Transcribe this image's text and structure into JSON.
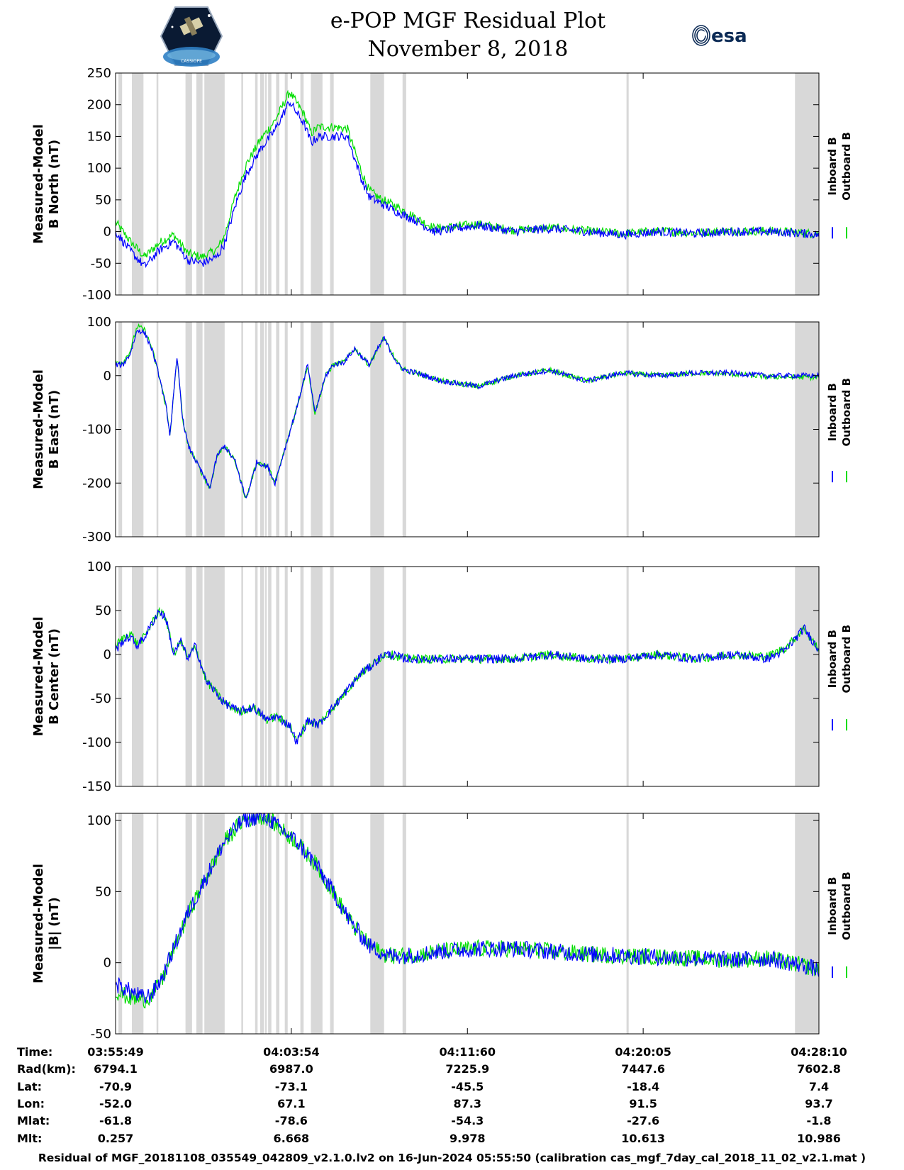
{
  "header": {
    "title": "e-POP MGF Residual Plot",
    "date": "November 8, 2018",
    "logo_left_text": "CASSIOPE",
    "logo_right_text": "esa"
  },
  "colors": {
    "inboard": "#0000ff",
    "outboard": "#00dd00",
    "gap": "#d8d8d8"
  },
  "legend": {
    "inboard": "Inboard B",
    "outboard": "Outboard B"
  },
  "chart_data": [
    {
      "type": "line",
      "ylabel_line1": "Measured-Model",
      "ylabel_line2": "B North (nT)",
      "ylim": [
        -100,
        250
      ],
      "yticks": [
        -100,
        -50,
        0,
        50,
        100,
        150,
        200,
        250
      ],
      "xlim": [
        0,
        1941
      ],
      "series": [
        {
          "name": "Inboard B",
          "x": [
            0,
            40,
            80,
            120,
            160,
            200,
            240,
            280,
            300,
            330,
            360,
            400,
            440,
            480,
            520,
            540,
            560,
            600,
            640,
            680,
            700,
            730,
            780,
            820,
            880,
            940,
            1000,
            1100,
            1200,
            1300,
            1400,
            1500,
            1600,
            1700,
            1800,
            1900,
            1941
          ],
          "y": [
            0,
            -30,
            -55,
            -30,
            -15,
            -45,
            -50,
            -40,
            -20,
            40,
            90,
            130,
            160,
            205,
            170,
            140,
            150,
            150,
            150,
            80,
            55,
            45,
            30,
            20,
            0,
            5,
            10,
            0,
            5,
            0,
            -5,
            0,
            -3,
            0,
            0,
            -3,
            -5
          ]
        },
        {
          "name": "Outboard B",
          "x": [
            0,
            40,
            80,
            120,
            160,
            200,
            240,
            280,
            300,
            330,
            360,
            400,
            440,
            480,
            520,
            540,
            560,
            600,
            640,
            680,
            700,
            730,
            780,
            820,
            880,
            940,
            1000,
            1100,
            1200,
            1300,
            1400,
            1500,
            1600,
            1700,
            1800,
            1900,
            1941
          ],
          "y": [
            15,
            -15,
            -40,
            -18,
            -5,
            -35,
            -40,
            -28,
            -8,
            55,
            105,
            145,
            175,
            220,
            185,
            155,
            165,
            165,
            162,
            92,
            65,
            52,
            38,
            25,
            5,
            8,
            12,
            2,
            6,
            1,
            -3,
            1,
            -2,
            1,
            1,
            -2,
            -4
          ]
        }
      ]
    },
    {
      "type": "line",
      "ylabel_line1": "Measured-Model",
      "ylabel_line2": "B East (nT)",
      "ylim": [
        -300,
        100
      ],
      "yticks": [
        -300,
        -200,
        -100,
        0,
        100
      ],
      "xlim": [
        0,
        1941
      ],
      "series": [
        {
          "name": "Inboard B",
          "x": [
            0,
            20,
            40,
            60,
            80,
            100,
            120,
            140,
            150,
            170,
            185,
            200,
            230,
            260,
            280,
            300,
            330,
            360,
            390,
            420,
            440,
            470,
            500,
            530,
            550,
            580,
            600,
            630,
            660,
            700,
            740,
            780,
            800,
            830,
            900,
            1000,
            1100,
            1200,
            1300,
            1400,
            1500,
            1600,
            1700,
            1800,
            1900,
            1941
          ],
          "y": [
            20,
            20,
            40,
            85,
            80,
            50,
            0,
            -60,
            -110,
            35,
            -80,
            -130,
            -170,
            -210,
            -150,
            -130,
            -160,
            -230,
            -160,
            -170,
            -200,
            -130,
            -60,
            20,
            -70,
            0,
            20,
            25,
            50,
            20,
            70,
            20,
            10,
            5,
            -10,
            -20,
            0,
            10,
            -10,
            5,
            0,
            5,
            5,
            0,
            0,
            0
          ]
        },
        {
          "name": "Outboard B",
          "x": [
            0,
            20,
            40,
            60,
            80,
            100,
            120,
            140,
            150,
            170,
            185,
            200,
            230,
            260,
            280,
            300,
            330,
            360,
            390,
            420,
            440,
            470,
            500,
            530,
            550,
            580,
            600,
            630,
            660,
            700,
            740,
            780,
            800,
            830,
            900,
            1000,
            1100,
            1200,
            1300,
            1400,
            1500,
            1600,
            1700,
            1800,
            1900,
            1941
          ],
          "y": [
            25,
            25,
            45,
            92,
            85,
            52,
            0,
            -60,
            -110,
            35,
            -80,
            -130,
            -170,
            -210,
            -150,
            -130,
            -160,
            -230,
            -160,
            -170,
            -200,
            -130,
            -60,
            20,
            -70,
            0,
            20,
            25,
            50,
            20,
            70,
            20,
            10,
            5,
            -10,
            -20,
            0,
            10,
            -10,
            5,
            0,
            5,
            3,
            -2,
            -3,
            -3
          ]
        }
      ]
    },
    {
      "type": "line",
      "ylabel_line1": "Measured-Model",
      "ylabel_line2": "B Center (nT)",
      "ylim": [
        -150,
        100
      ],
      "yticks": [
        -150,
        -100,
        -50,
        0,
        50,
        100
      ],
      "xlim": [
        0,
        1941
      ],
      "series": [
        {
          "name": "Inboard B",
          "x": [
            0,
            20,
            40,
            60,
            80,
            100,
            120,
            140,
            160,
            180,
            200,
            220,
            250,
            270,
            300,
            340,
            380,
            420,
            440,
            480,
            500,
            530,
            560,
            600,
            640,
            680,
            700,
            740,
            760,
            800,
            850,
            900,
            1000,
            1100,
            1200,
            1300,
            1400,
            1500,
            1600,
            1700,
            1800,
            1850,
            1900,
            1941
          ],
          "y": [
            5,
            15,
            20,
            10,
            20,
            35,
            50,
            40,
            0,
            15,
            -5,
            10,
            -30,
            -40,
            -55,
            -65,
            -60,
            -75,
            -70,
            -80,
            -100,
            -75,
            -80,
            -60,
            -40,
            -20,
            -15,
            0,
            0,
            -5,
            -5,
            -5,
            -5,
            -5,
            0,
            -5,
            -5,
            0,
            -5,
            0,
            -5,
            5,
            30,
            5
          ]
        },
        {
          "name": "Outboard B",
          "x": [
            0,
            20,
            40,
            60,
            80,
            100,
            120,
            140,
            160,
            180,
            200,
            220,
            250,
            270,
            300,
            340,
            380,
            420,
            440,
            480,
            500,
            530,
            560,
            600,
            640,
            680,
            700,
            740,
            760,
            800,
            850,
            900,
            1000,
            1100,
            1200,
            1300,
            1400,
            1500,
            1600,
            1700,
            1800,
            1850,
            1900,
            1941
          ],
          "y": [
            10,
            18,
            25,
            12,
            20,
            35,
            50,
            40,
            0,
            15,
            -5,
            10,
            -30,
            -40,
            -55,
            -65,
            -60,
            -75,
            -70,
            -80,
            -100,
            -75,
            -80,
            -60,
            -40,
            -20,
            -15,
            0,
            0,
            -5,
            -5,
            -5,
            -5,
            -5,
            0,
            -5,
            -5,
            0,
            -5,
            0,
            -2,
            8,
            30,
            5
          ]
        }
      ]
    },
    {
      "type": "line",
      "ylabel_line1": "Measured-Model",
      "ylabel_line2": "|B| (nT)",
      "ylim": [
        -50,
        105
      ],
      "yticks": [
        -50,
        0,
        50,
        100
      ],
      "xlim": [
        0,
        1941
      ],
      "series": [
        {
          "name": "Inboard B",
          "x": [
            0,
            40,
            80,
            100,
            130,
            160,
            200,
            250,
            300,
            350,
            400,
            420,
            450,
            500,
            550,
            600,
            650,
            700,
            750,
            800,
            900,
            1000,
            1100,
            1200,
            1300,
            1400,
            1500,
            1600,
            1700,
            1800,
            1900,
            1941
          ],
          "y": [
            -15,
            -20,
            -25,
            -22,
            -10,
            10,
            35,
            60,
            85,
            100,
            103,
            102,
            95,
            85,
            70,
            50,
            28,
            12,
            5,
            5,
            8,
            10,
            10,
            8,
            6,
            5,
            4,
            3,
            2,
            3,
            -2,
            -5
          ]
        },
        {
          "name": "Outboard B",
          "x": [
            0,
            40,
            80,
            100,
            130,
            160,
            200,
            250,
            300,
            350,
            400,
            420,
            450,
            500,
            550,
            600,
            650,
            700,
            750,
            800,
            900,
            1000,
            1100,
            1200,
            1300,
            1400,
            1500,
            1600,
            1700,
            1800,
            1900,
            1941
          ],
          "y": [
            -20,
            -25,
            -26,
            -23,
            -11,
            9,
            34,
            60,
            85,
            100,
            103,
            102,
            95,
            85,
            70,
            50,
            28,
            12,
            5,
            5,
            8,
            10,
            10,
            8,
            6,
            5,
            4,
            3,
            2,
            3,
            -2,
            -5
          ]
        }
      ]
    }
  ],
  "gaps_seconds": [
    [
      8,
      18
    ],
    [
      45,
      77
    ],
    [
      113,
      118
    ],
    [
      193,
      211
    ],
    [
      223,
      240
    ],
    [
      245,
      301
    ],
    [
      347,
      352
    ],
    [
      385,
      392
    ],
    [
      399,
      410
    ],
    [
      413,
      417
    ],
    [
      421,
      430
    ],
    [
      443,
      452
    ],
    [
      467,
      475
    ],
    [
      510,
      519
    ],
    [
      539,
      571
    ],
    [
      592,
      602
    ],
    [
      703,
      741
    ],
    [
      792,
      802
    ],
    [
      1410,
      1416
    ],
    [
      1875,
      1941
    ]
  ],
  "xaxis": {
    "tick_seconds": [
      0,
      485,
      971,
      1456,
      1941
    ],
    "rows": [
      {
        "label": "Time:",
        "values": [
          "03:55:49",
          "04:03:54",
          "04:11:60",
          "04:20:05",
          "04:28:10"
        ]
      },
      {
        "label": "Rad(km):",
        "values": [
          "6794.1",
          "6987.0",
          "7225.9",
          "7447.6",
          "7602.8"
        ]
      },
      {
        "label": "Lat:",
        "values": [
          "-70.9",
          "-73.1",
          "-45.5",
          "-18.4",
          "7.4"
        ]
      },
      {
        "label": "Lon:",
        "values": [
          "-52.0",
          "67.1",
          "87.3",
          "91.5",
          "93.7"
        ]
      },
      {
        "label": "Mlat:",
        "values": [
          "-61.8",
          "-78.6",
          "-54.3",
          "-27.6",
          "-1.8"
        ]
      },
      {
        "label": "Mlt:",
        "values": [
          "0.257",
          "6.668",
          "9.978",
          "10.613",
          "10.986"
        ]
      }
    ]
  },
  "footer": "Residual of MGF_20181108_035549_042809_v2.1.0.lv2 on 16-Jun-2024 05:55:50 (calibration cas_mgf_7day_cal_2018_11_02_v2.1.mat )"
}
